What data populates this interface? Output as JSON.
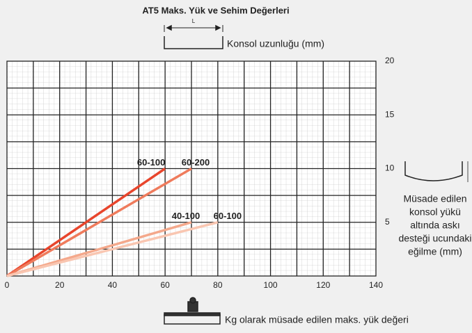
{
  "chart_data": {
    "type": "line",
    "title": "AT5 Maks. Yük ve Sehim Değerleri",
    "top_label": "Konsol uzunluğu (mm)",
    "length_symbol": "L",
    "x_label": "Kg olarak müsade edilen maks. yük değeri",
    "y_label_lines": [
      "Müsade edilen",
      "konsol yükü",
      "altında askı",
      "desteği ucundaki",
      "eğilme (mm)"
    ],
    "xlim": [
      0,
      140
    ],
    "ylim": [
      0,
      20
    ],
    "xticks": [
      0,
      20,
      40,
      60,
      80,
      100,
      120,
      140
    ],
    "yticks": [
      5,
      10,
      15,
      20
    ],
    "x_grid": [
      10,
      20,
      30,
      40,
      50,
      60,
      70,
      80,
      90,
      100,
      110,
      120,
      130
    ],
    "y_grid": [
      2.5,
      5,
      7.5,
      10,
      12.5,
      15,
      17.5
    ],
    "grid": true,
    "series": [
      {
        "name": "60-100",
        "color": "#e8452c",
        "x": [
          0,
          60
        ],
        "values": [
          0,
          10
        ]
      },
      {
        "name": "60-200",
        "color": "#ef7b5c",
        "x": [
          0,
          70
        ],
        "values": [
          0,
          10
        ]
      },
      {
        "name": "40-100",
        "color": "#f4a88b",
        "x": [
          0,
          70
        ],
        "values": [
          0,
          5
        ]
      },
      {
        "name": "60-100",
        "color": "#f9c6b1",
        "x": [
          0,
          80
        ],
        "values": [
          0,
          5
        ]
      }
    ]
  }
}
